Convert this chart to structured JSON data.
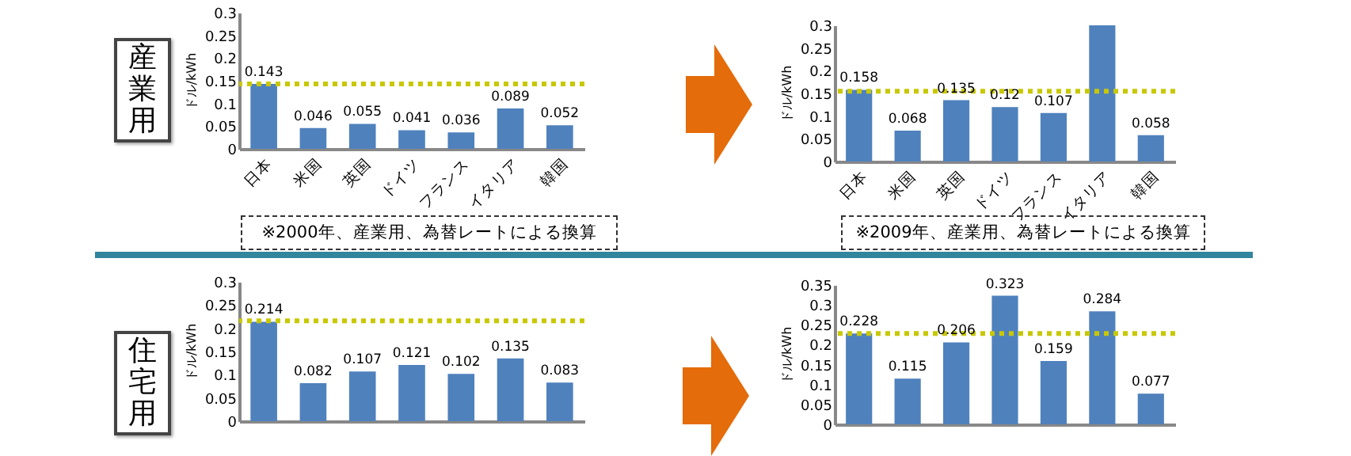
{
  "chart_data": [
    {
      "type": "bar",
      "ylabel": "ドル/kWh",
      "categories": [
        "日本",
        "米国",
        "英国",
        "ドイツ",
        "フランス",
        "イタリア",
        "韓国"
      ],
      "values": [
        0.143,
        0.046,
        0.055,
        0.041,
        0.036,
        0.089,
        0.052
      ],
      "color": "#4f81bd",
      "data_labels": true,
      "ylim": [
        0,
        0.3
      ],
      "yticks": [
        0,
        0.05,
        0.1,
        0.15,
        0.2,
        0.25,
        0.3
      ],
      "ref_lines": [
        {
          "axis": "y",
          "value": 0.143,
          "color": "#c8c800",
          "line_style": "dotted"
        }
      ],
      "annotations": [
        "産業用",
        "※2000年、産業用、為替レートによる換算"
      ]
    },
    {
      "type": "bar",
      "ylabel": "ドル/kWh",
      "categories": [
        "日本",
        "米国",
        "英国",
        "ドイツ",
        "フランス",
        "イタリア",
        "韓国"
      ],
      "values": [
        0.158,
        0.068,
        0.135,
        0.12,
        0.107,
        0.3,
        0.058
      ],
      "value_labels": [
        "0.158",
        "0.068",
        "0.135",
        "0.12",
        "0.107",
        null,
        "0.058"
      ],
      "color": "#4f81bd",
      "ylim": [
        0,
        0.3
      ],
      "yticks": [
        0,
        0.05,
        0.1,
        0.15,
        0.2,
        0.25,
        0.3
      ],
      "ref_lines": [
        {
          "axis": "y",
          "value": 0.155,
          "color": "#c8c800",
          "line_style": "dotted"
        }
      ],
      "annotations": [
        "※2009年、産業用、為替レートによる換算"
      ]
    },
    {
      "type": "bar",
      "ylabel": "ドル/kWh",
      "categories": [
        null,
        null,
        null,
        null,
        null,
        null,
        null
      ],
      "values": [
        0.214,
        0.082,
        0.107,
        0.121,
        0.102,
        0.135,
        0.083
      ],
      "color": "#4f81bd",
      "data_labels": true,
      "ylim": [
        0,
        0.3
      ],
      "yticks": [
        0,
        0.05,
        0.1,
        0.15,
        0.2,
        0.25,
        0.3
      ],
      "tick_labels": "y",
      "ref_lines": [
        {
          "axis": "y",
          "value": 0.216,
          "color": "#c8c800",
          "line_style": "dotted"
        }
      ],
      "annotations": [
        "住宅用"
      ]
    },
    {
      "type": "bar",
      "ylabel": "ドル/kWh",
      "categories": [
        null,
        null,
        null,
        null,
        null,
        null,
        null
      ],
      "values": [
        0.228,
        0.115,
        0.206,
        0.323,
        0.159,
        0.284,
        0.077
      ],
      "color": "#4f81bd",
      "data_labels": true,
      "ylim": [
        0,
        0.35
      ],
      "yticks": [
        0,
        0.05,
        0.1,
        0.15,
        0.2,
        0.25,
        0.3,
        0.35
      ],
      "tick_labels": "y",
      "ref_lines": [
        {
          "axis": "y",
          "value": 0.228,
          "color": "#c8c800",
          "line_style": "dotted"
        }
      ]
    }
  ]
}
